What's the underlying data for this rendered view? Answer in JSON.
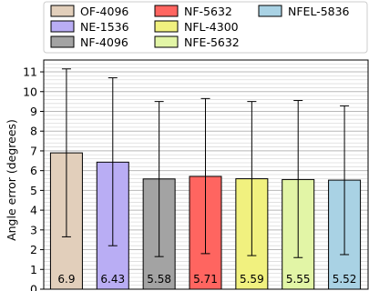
{
  "chart_data": {
    "type": "bar",
    "title": "",
    "xlabel": "",
    "ylabel": "Angle error (degrees)",
    "ylim": [
      0,
      11.6
    ],
    "yticks": [
      0,
      1,
      2,
      3,
      4,
      5,
      6,
      7,
      8,
      9,
      10,
      11
    ],
    "grid": "horizontal minor+major",
    "legend_position": "top",
    "legend_columns": 3,
    "series": [
      {
        "name": "OF-4096",
        "value": 6.9,
        "label": "6.9",
        "err_low": 2.65,
        "err_high": 11.15,
        "color": "#e2cfbb"
      },
      {
        "name": "NE-1536",
        "value": 6.43,
        "label": "6.43",
        "err_low": 2.2,
        "err_high": 10.7,
        "color": "#b9adf4"
      },
      {
        "name": "NF-4096",
        "value": 5.58,
        "label": "5.58",
        "err_low": 1.65,
        "err_high": 9.5,
        "color": "#a3a3a3"
      },
      {
        "name": "NF-5632",
        "value": 5.71,
        "label": "5.71",
        "err_low": 1.8,
        "err_high": 9.65,
        "color": "#ff6560"
      },
      {
        "name": "NFL-4300",
        "value": 5.59,
        "label": "5.59",
        "err_low": 1.7,
        "err_high": 9.5,
        "color": "#f1f17f"
      },
      {
        "name": "NFE-5632",
        "value": 5.55,
        "label": "5.55",
        "err_low": 1.6,
        "err_high": 9.55,
        "color": "#e2f5a6"
      },
      {
        "name": "NFEL-5836",
        "value": 5.52,
        "label": "5.52",
        "err_low": 1.75,
        "err_high": 9.28,
        "color": "#a9d2e4"
      }
    ]
  }
}
